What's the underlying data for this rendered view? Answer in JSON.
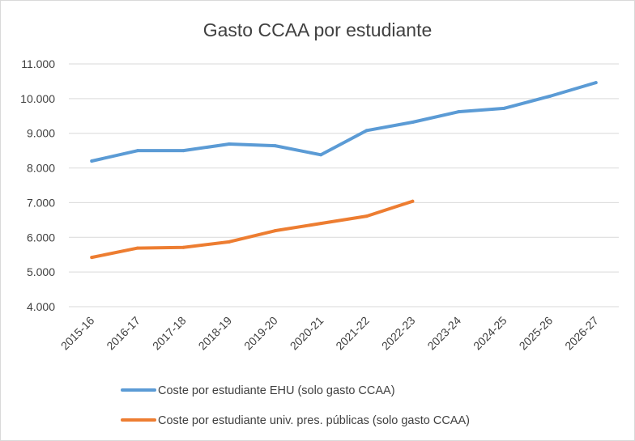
{
  "chart_data": {
    "type": "line",
    "title": "Gasto CCAA por estudiante",
    "xlabel": "",
    "ylabel": "",
    "categories": [
      "2015-16",
      "2016-17",
      "2017-18",
      "2018-19",
      "2019-20",
      "2020-21",
      "2021-22",
      "2022-23",
      "2023-24",
      "2024-25",
      "2025-26",
      "2026-27"
    ],
    "ylim": [
      4000,
      11000
    ],
    "yticks": [
      4000,
      5000,
      6000,
      7000,
      8000,
      9000,
      10000,
      11000
    ],
    "ytick_labels": [
      "4.000",
      "5.000",
      "6.000",
      "7.000",
      "8.000",
      "9.000",
      "10.000",
      "11.000"
    ],
    "grid": true,
    "legend_position": "bottom",
    "series": [
      {
        "name": "Coste por estudiante EHU (solo gasto CCAA)",
        "color": "#5b9bd5",
        "values": [
          8200,
          8500,
          8500,
          8690,
          8640,
          8380,
          9080,
          9320,
          9620,
          9720,
          10070,
          10460
        ]
      },
      {
        "name": "Coste por estudiante univ. pres. públicas (solo gasto CCAA)",
        "color": "#ed7d31",
        "values": [
          5420,
          5690,
          5710,
          5870,
          6190,
          6400,
          6610,
          7040,
          null,
          null,
          null,
          null
        ]
      }
    ]
  }
}
